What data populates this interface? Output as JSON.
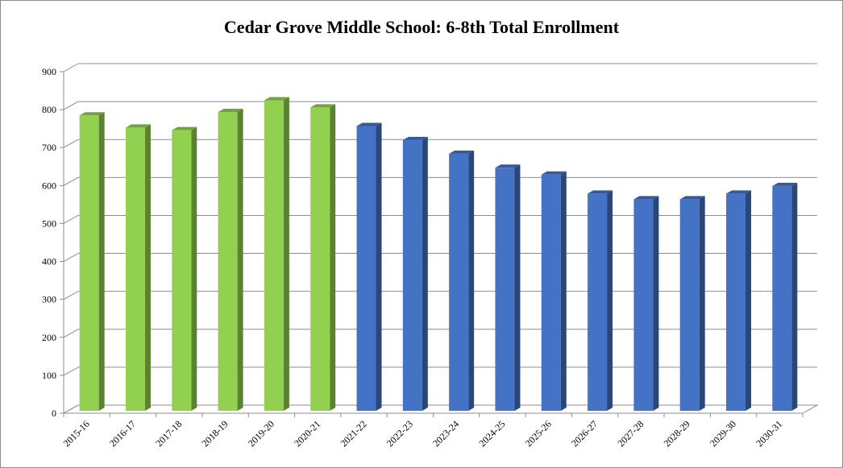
{
  "chart_data": {
    "type": "bar",
    "title": "Cedar Grove Middle School: 6-8th Total Enrollment",
    "xlabel": "",
    "ylabel": "",
    "categories": [
      "2015-16",
      "2016-17",
      "2017-18",
      "2018-19",
      "2019-20",
      "2020-21",
      "2021-22",
      "2022-23",
      "2023-24",
      "2024-25",
      "2025-26",
      "2026-27",
      "2027-28",
      "2028-29",
      "2029-30",
      "2030-31"
    ],
    "values": [
      789,
      757,
      750,
      798,
      829,
      810,
      761,
      724,
      688,
      651,
      633,
      583,
      568,
      568,
      583,
      603
    ],
    "bar_colors": [
      "#92d050",
      "#92d050",
      "#92d050",
      "#92d050",
      "#92d050",
      "#92d050",
      "#4472c4",
      "#4472c4",
      "#4472c4",
      "#4472c4",
      "#4472c4",
      "#4472c4",
      "#4472c4",
      "#4472c4",
      "#4472c4",
      "#4472c4"
    ],
    "ylim": [
      0,
      900
    ],
    "yticks": [
      0,
      100,
      200,
      300,
      400,
      500,
      600,
      700,
      800,
      900
    ],
    "grid": true,
    "legend": "none",
    "style": "3d-column"
  }
}
